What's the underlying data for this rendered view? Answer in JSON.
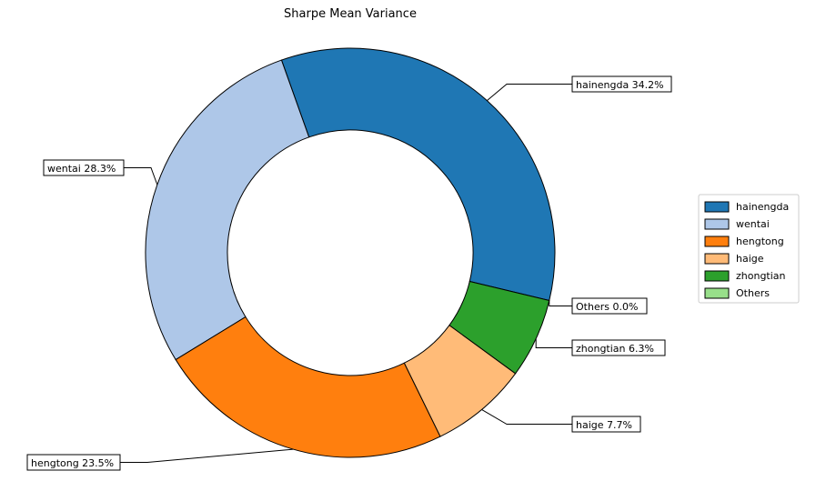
{
  "chart_data": {
    "type": "pie",
    "style": "donut",
    "title": "Sharpe Mean Variance",
    "slices": [
      {
        "label": "hainengda",
        "value": 34.2,
        "color": "#1f77b4"
      },
      {
        "label": "wentai",
        "value": 28.3,
        "color": "#aec7e8"
      },
      {
        "label": "hengtong",
        "value": 23.5,
        "color": "#ff7f0e"
      },
      {
        "label": "haige",
        "value": 7.7,
        "color": "#ffbb78"
      },
      {
        "label": "zhongtian",
        "value": 6.3,
        "color": "#2ca02c"
      },
      {
        "label": "Others",
        "value": 0.0,
        "color": "#98df8a"
      }
    ],
    "callouts": [
      {
        "text": "hainengda 34.2%"
      },
      {
        "text": "wentai 28.3%"
      },
      {
        "text": "hengtong 23.5%"
      },
      {
        "text": "haige 7.7%"
      },
      {
        "text": "zhongtian 6.3%"
      },
      {
        "text": "Others 0.0%"
      }
    ],
    "legend": {
      "placement": "right",
      "entries": [
        "hainengda",
        "wentai",
        "hengtong",
        "haige",
        "zhongtian",
        "Others"
      ]
    }
  }
}
